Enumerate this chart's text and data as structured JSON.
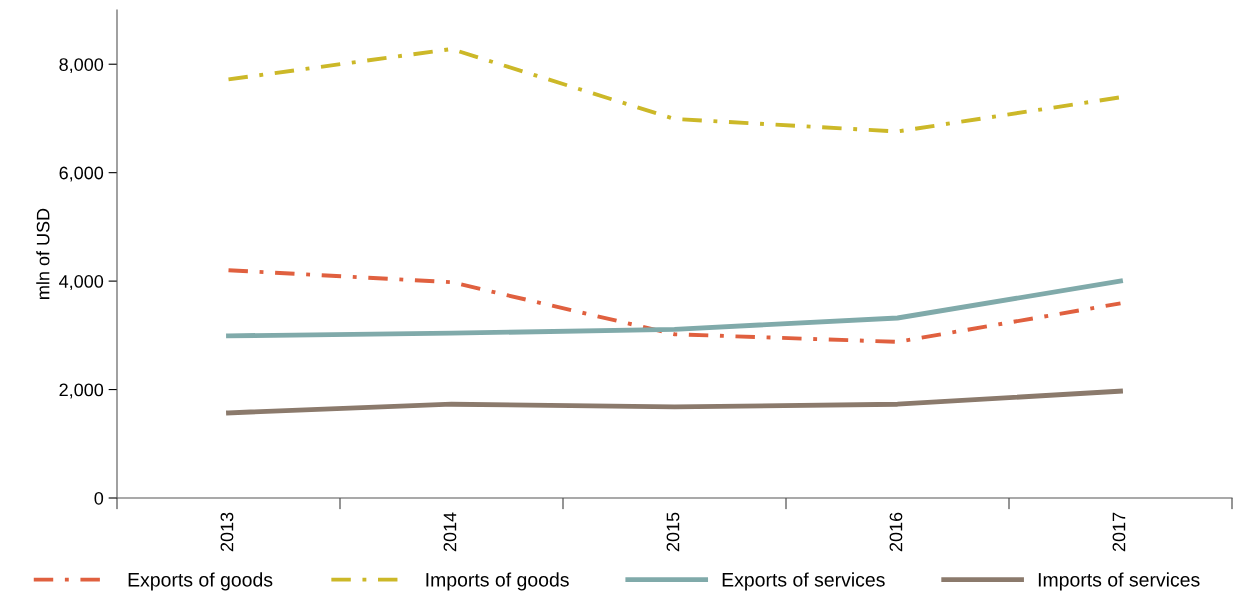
{
  "chart_data": {
    "type": "line",
    "ylabel": "mln of USD",
    "categories": [
      "2013",
      "2014",
      "2015",
      "2016",
      "2017"
    ],
    "series": [
      {
        "name": "Exports of goods",
        "color": "#e0603f",
        "line_style": "dashdot",
        "values": [
          4200,
          3980,
          3020,
          2880,
          3590
        ]
      },
      {
        "name": "Imports of goods",
        "color": "#ccb828",
        "line_style": "dashdot",
        "values": [
          7720,
          8280,
          6990,
          6760,
          7390
        ]
      },
      {
        "name": "Exports of services",
        "color": "#80aaaa",
        "line_style": "solid",
        "values": [
          2990,
          3040,
          3110,
          3320,
          4000
        ]
      },
      {
        "name": "Imports of services",
        "color": "#8b7a6c",
        "line_style": "solid",
        "values": [
          1570,
          1730,
          1680,
          1730,
          1970
        ]
      }
    ],
    "ylim": [
      0,
      9000
    ],
    "yticks": [
      0,
      {
        "value": 2000,
        "label": "2,000"
      },
      {
        "value": 4000,
        "label": "4,000"
      },
      {
        "value": 6000,
        "label": "6,000"
      },
      {
        "value": 8000,
        "label": "8,000"
      }
    ],
    "grid": false,
    "legend": "bottom",
    "marker": "none"
  }
}
